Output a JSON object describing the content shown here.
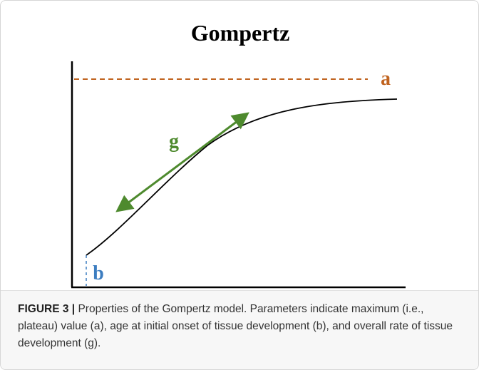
{
  "figure": {
    "title": "Gompertz",
    "labels": {
      "a": "a",
      "b": "b",
      "g": "g"
    },
    "caption": {
      "label": "FIGURE 3 |",
      "text": "Properties of the Gompertz model. Parameters indicate maximum (i.e., plateau) value (a), age at initial onset of tissue development (b), and overall rate of tissue development (g)."
    }
  }
}
